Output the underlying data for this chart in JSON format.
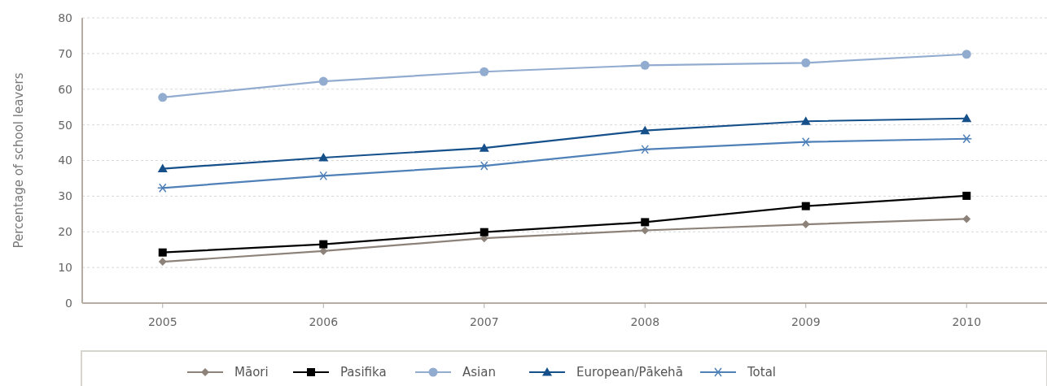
{
  "chart_data": {
    "type": "line",
    "ylabel": "Percentage of school leavers",
    "categories": [
      "2005",
      "2006",
      "2007",
      "2008",
      "2009",
      "2010"
    ],
    "ylim": [
      0,
      80
    ],
    "yticks": [
      0,
      10,
      20,
      30,
      40,
      50,
      60,
      70,
      80
    ],
    "grid": "y",
    "legend": "bottom",
    "series": [
      {
        "name": "Māori",
        "color": "#8c8279",
        "marker": "diamond",
        "values": [
          11.6,
          14.6,
          18.2,
          20.4,
          22.1,
          23.6
        ]
      },
      {
        "name": "Pasifika",
        "color": "#000000",
        "marker": "square",
        "values": [
          14.2,
          16.5,
          19.9,
          22.7,
          27.2,
          30.1
        ]
      },
      {
        "name": "Asian",
        "color": "#92acd0",
        "marker": "circle",
        "values": [
          57.7,
          62.2,
          64.9,
          66.7,
          67.4,
          69.8
        ]
      },
      {
        "name": "European/Pākehā",
        "color": "#15508a",
        "marker": "triangle",
        "values": [
          37.7,
          40.8,
          43.5,
          48.4,
          51.0,
          51.8
        ]
      },
      {
        "name": "Total",
        "color": "#4f81b8",
        "marker": "cross",
        "values": [
          32.3,
          35.7,
          38.5,
          43.1,
          45.2,
          46.1
        ]
      }
    ]
  }
}
